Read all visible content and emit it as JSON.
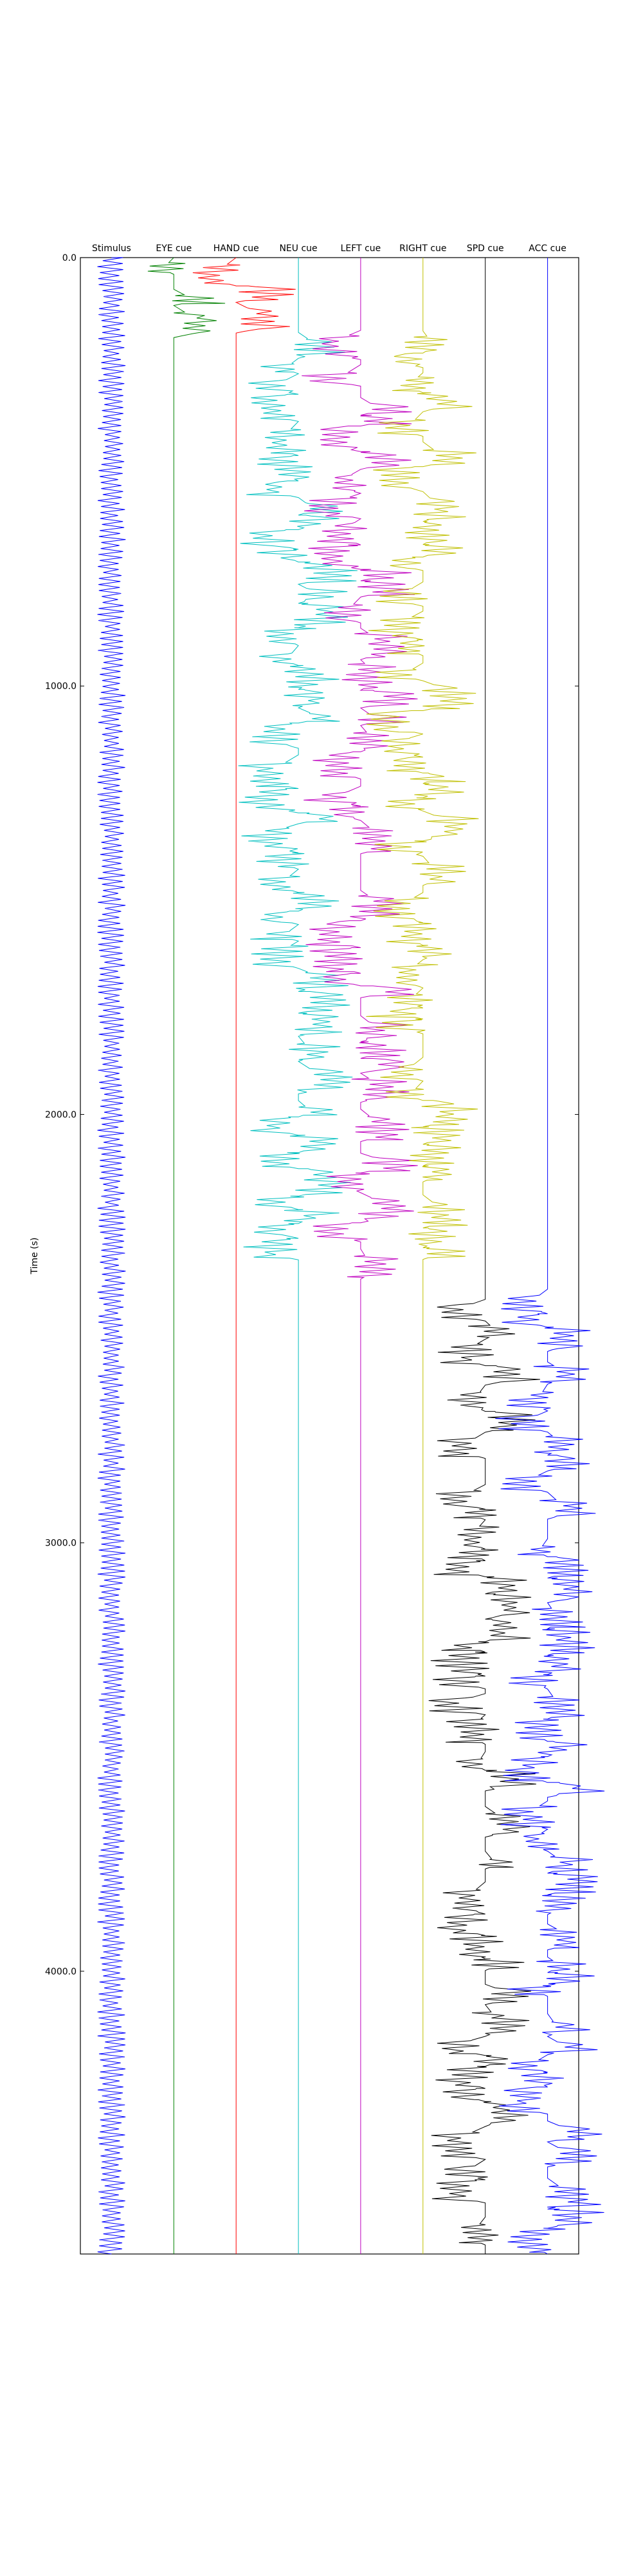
{
  "chart_data": {
    "type": "line",
    "ylabel": "Time (s)",
    "ylim": [
      4660,
      0
    ],
    "yticks": [
      0,
      1000,
      2000,
      3000,
      4000
    ],
    "ytick_labels": [
      "0.0",
      "1000.0",
      "2000.0",
      "3000.0",
      "4000.0"
    ],
    "grid": false,
    "series": [
      {
        "name": "Stimulus",
        "color": "#0000ff",
        "pattern": "dense",
        "onsets": "0-4660 (continuous)"
      },
      {
        "name": "EYE cue",
        "color": "#008000",
        "pattern": "sparse",
        "onsets": "0-180"
      },
      {
        "name": "HAND cue",
        "color": "#ff0000",
        "pattern": "sparse",
        "onsets": "0-180"
      },
      {
        "name": "NEU cue",
        "color": "#00bfbf",
        "pattern": "sparse",
        "onsets": "180-2380"
      },
      {
        "name": "LEFT cue",
        "color": "#bf00bf",
        "pattern": "sparse",
        "onsets": "180-2380"
      },
      {
        "name": "RIGHT cue",
        "color": "#bfbf00",
        "pattern": "sparse",
        "onsets": "180-2380"
      },
      {
        "name": "SPD cue",
        "color": "#000000",
        "pattern": "sparse",
        "onsets": "2420-4660"
      },
      {
        "name": "ACC cue",
        "color": "#0000ff",
        "pattern": "sparse",
        "onsets": "2420-4660"
      }
    ],
    "active_ranges": {
      "Stimulus": [
        [
          0,
          4660
        ]
      ],
      "EYE cue": [
        [
          0,
          180
        ]
      ],
      "HAND cue": [
        [
          0,
          180
        ]
      ],
      "NEU cue": [
        [
          180,
          2380
        ]
      ],
      "LEFT cue": [
        [
          180,
          2380
        ]
      ],
      "RIGHT cue": [
        [
          180,
          2380
        ]
      ],
      "SPD cue": [
        [
          2420,
          4660
        ]
      ],
      "ACC cue": [
        [
          2420,
          4660
        ]
      ]
    }
  }
}
